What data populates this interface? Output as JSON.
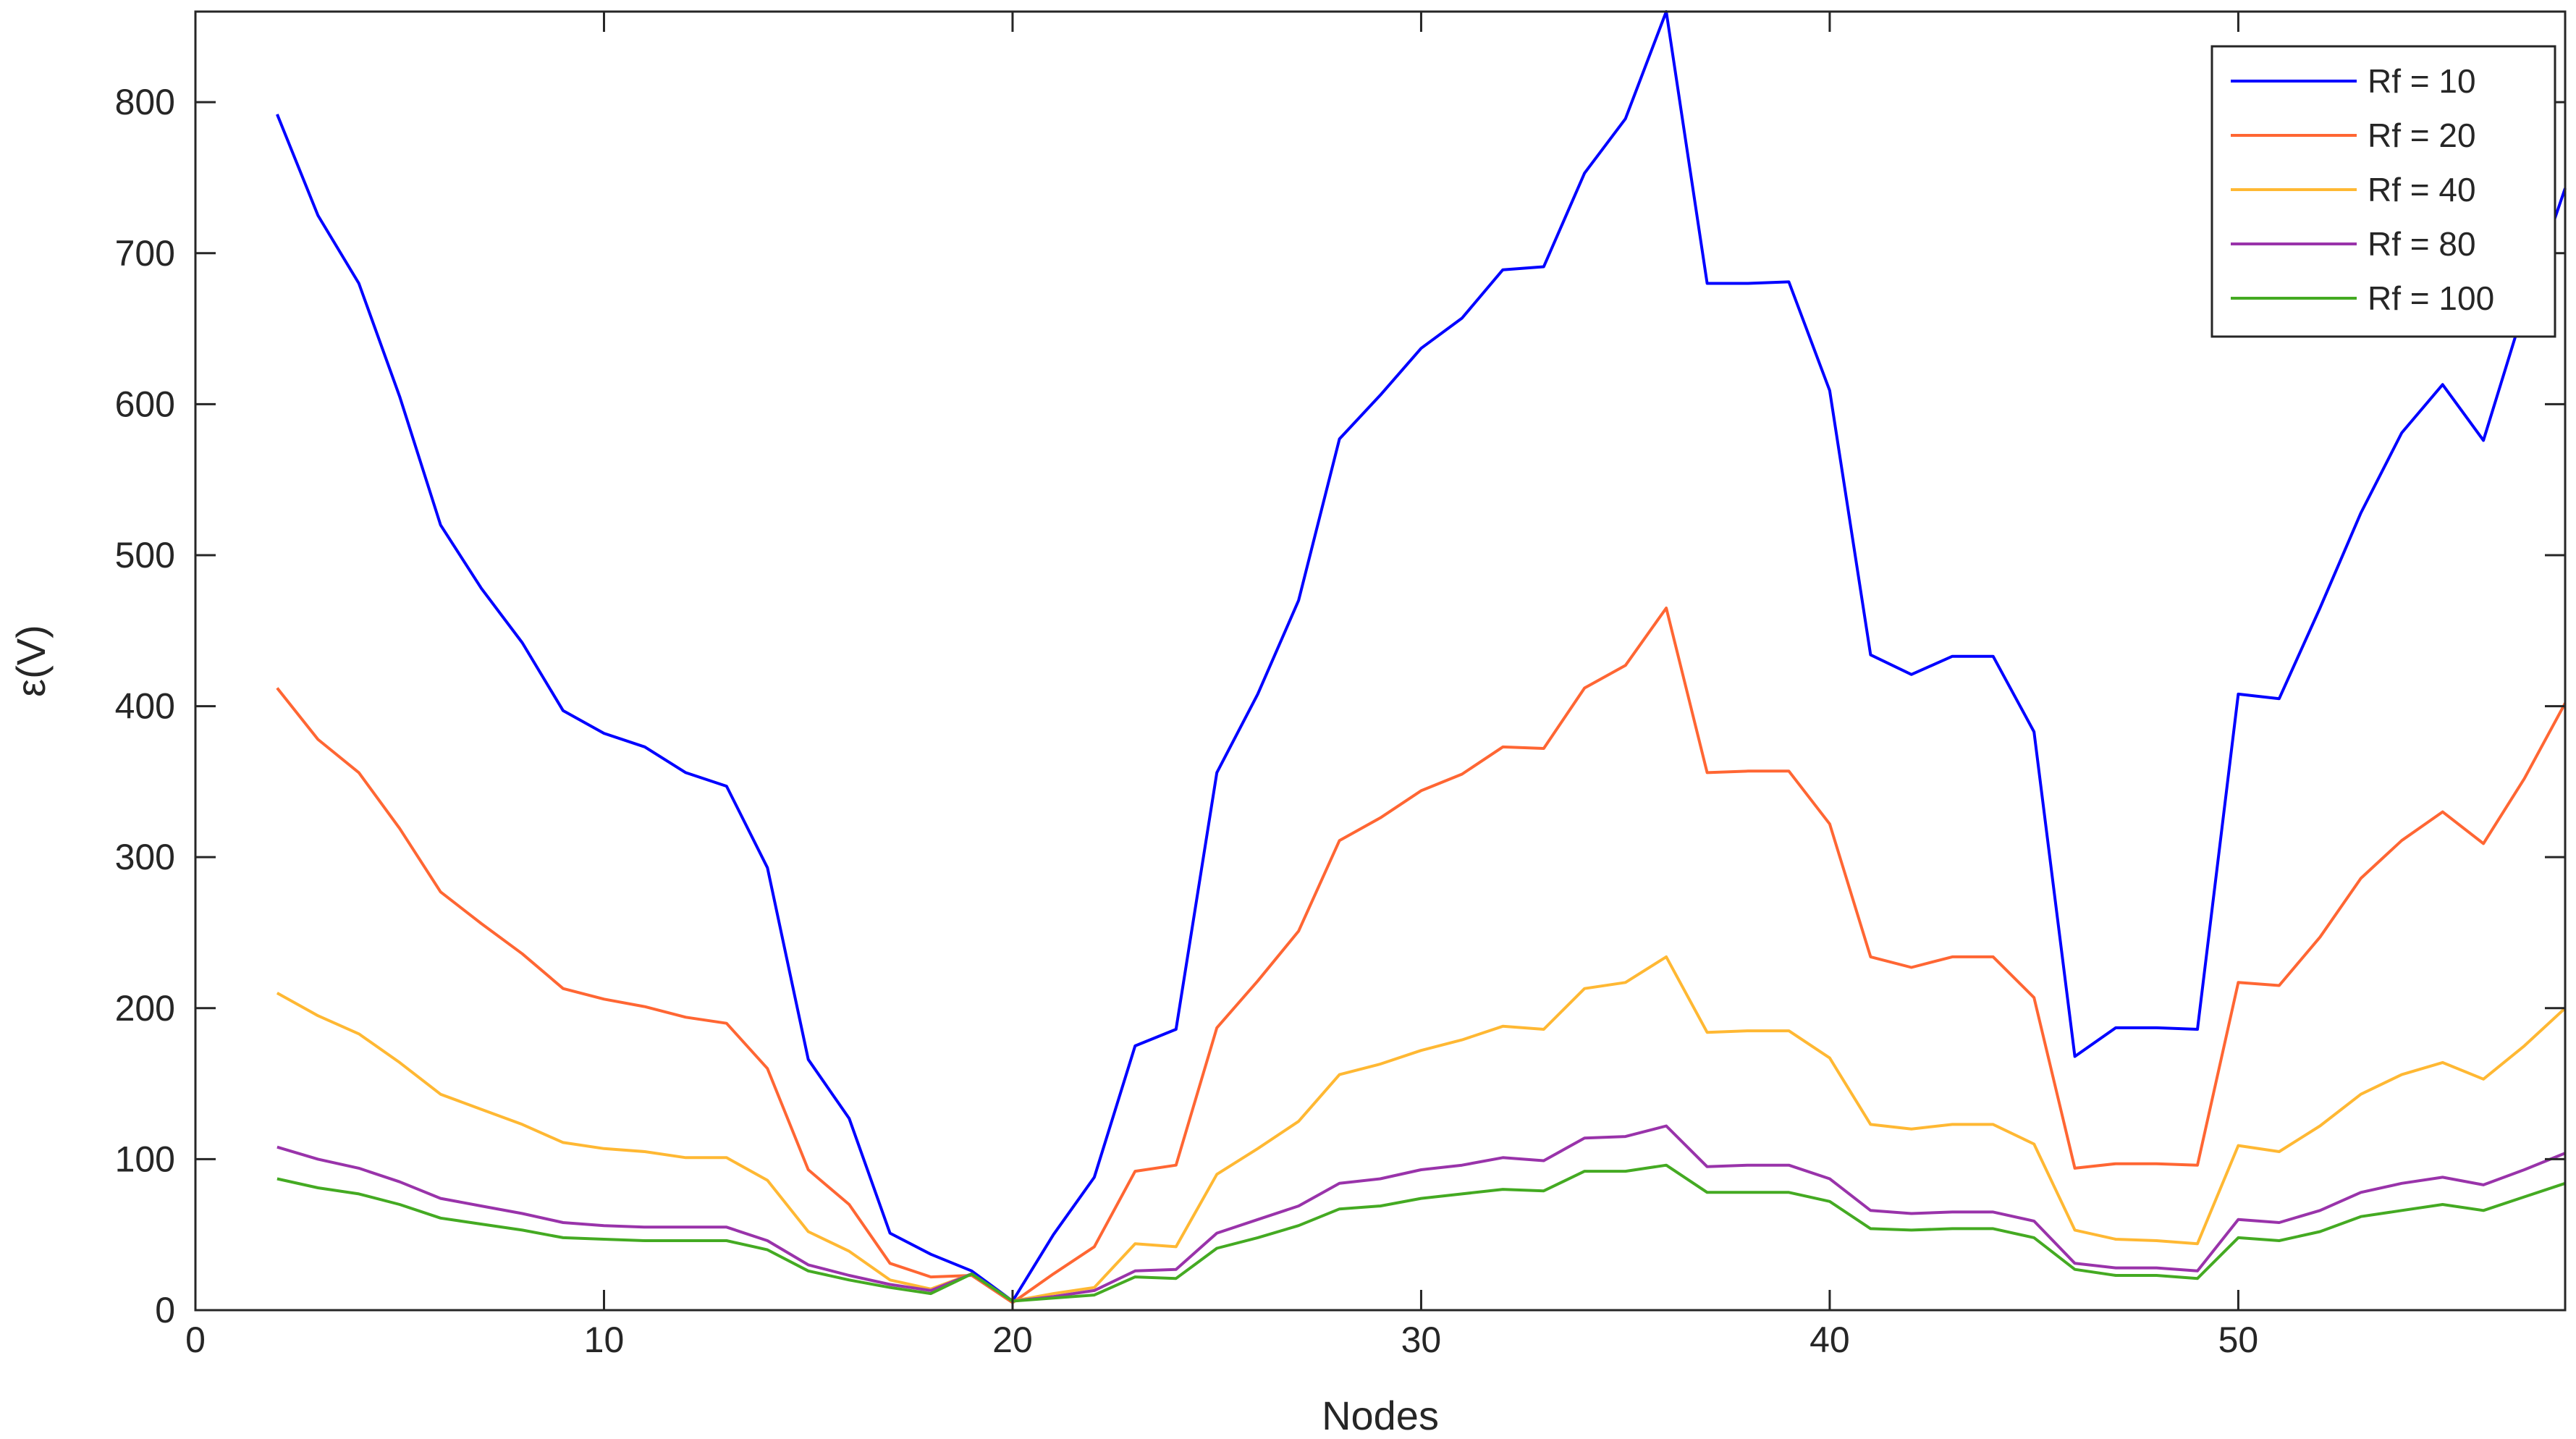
{
  "chart_data": {
    "type": "line",
    "title": "",
    "xlabel": "Nodes",
    "ylabel": "ε(V)",
    "xlim": [
      0,
      58
    ],
    "ylim": [
      0,
      860
    ],
    "xticks": [
      0,
      10,
      20,
      30,
      40,
      50
    ],
    "yticks": [
      0,
      100,
      200,
      300,
      400,
      500,
      600,
      700,
      800
    ],
    "grid": false,
    "legend_position": "top-right",
    "x": [
      2,
      3,
      4,
      5,
      6,
      7,
      8,
      9,
      10,
      11,
      12,
      13,
      14,
      15,
      16,
      17,
      18,
      19,
      20,
      21,
      22,
      23,
      24,
      25,
      26,
      27,
      28,
      29,
      30,
      31,
      32,
      33,
      34,
      35,
      36,
      37,
      38,
      39,
      40,
      41,
      42,
      43,
      44,
      45,
      46,
      47,
      48,
      49,
      50,
      51,
      52,
      53,
      54,
      55,
      56,
      57,
      58
    ],
    "series": [
      {
        "name": "Rf = 10",
        "color": "#0000ff",
        "values": [
          792,
          725,
          680,
          605,
          520,
          478,
          442,
          397,
          382,
          373,
          356,
          347,
          293,
          166,
          127,
          51,
          37,
          26,
          6,
          50,
          88,
          175,
          186,
          356,
          408,
          470,
          577,
          606,
          637,
          657,
          689,
          691,
          753,
          789,
          860,
          680,
          680,
          681,
          609,
          434,
          421,
          433,
          433,
          383,
          168,
          187,
          187,
          186,
          408,
          405,
          465,
          528,
          581,
          613,
          576,
          664,
          743
        ]
      },
      {
        "name": "Rf = 20",
        "color": "#ff6633",
        "values": [
          412,
          378,
          356,
          319,
          277,
          256,
          236,
          213,
          206,
          201,
          194,
          190,
          160,
          93,
          70,
          31,
          22,
          23,
          5,
          24,
          42,
          92,
          96,
          187,
          218,
          251,
          311,
          326,
          344,
          355,
          373,
          372,
          412,
          427,
          465,
          356,
          357,
          357,
          322,
          234,
          227,
          234,
          234,
          207,
          94,
          97,
          97,
          96,
          217,
          215,
          247,
          286,
          311,
          330,
          309,
          352,
          402
        ]
      },
      {
        "name": "Rf = 40",
        "color": "#ffb833",
        "values": [
          210,
          195,
          183,
          164,
          143,
          133,
          123,
          111,
          107,
          105,
          101,
          101,
          86,
          52,
          39,
          20,
          14,
          24,
          6,
          11,
          15,
          44,
          42,
          90,
          107,
          125,
          156,
          163,
          172,
          179,
          188,
          186,
          213,
          217,
          234,
          184,
          185,
          185,
          167,
          123,
          120,
          123,
          123,
          110,
          53,
          47,
          46,
          44,
          109,
          105,
          122,
          143,
          156,
          164,
          153,
          175,
          200
        ]
      },
      {
        "name": "Rf = 80",
        "color": "#9933aa",
        "values": [
          108,
          100,
          94,
          85,
          74,
          69,
          64,
          58,
          56,
          55,
          55,
          55,
          46,
          30,
          23,
          17,
          13,
          24,
          6,
          9,
          13,
          26,
          27,
          51,
          60,
          69,
          84,
          87,
          93,
          96,
          101,
          99,
          114,
          115,
          122,
          95,
          96,
          96,
          87,
          66,
          64,
          65,
          65,
          59,
          31,
          28,
          28,
          26,
          60,
          58,
          66,
          78,
          84,
          88,
          83,
          93,
          104
        ]
      },
      {
        "name": "Rf = 100",
        "color": "#44aa22",
        "values": [
          87,
          81,
          77,
          70,
          61,
          57,
          53,
          48,
          47,
          46,
          46,
          46,
          40,
          26,
          20,
          15,
          11,
          24,
          6,
          8,
          10,
          22,
          21,
          41,
          48,
          56,
          67,
          69,
          74,
          77,
          80,
          79,
          92,
          92,
          96,
          78,
          78,
          78,
          72,
          54,
          53,
          54,
          54,
          48,
          27,
          23,
          23,
          21,
          48,
          46,
          52,
          62,
          66,
          70,
          66,
          75,
          84
        ]
      }
    ]
  }
}
